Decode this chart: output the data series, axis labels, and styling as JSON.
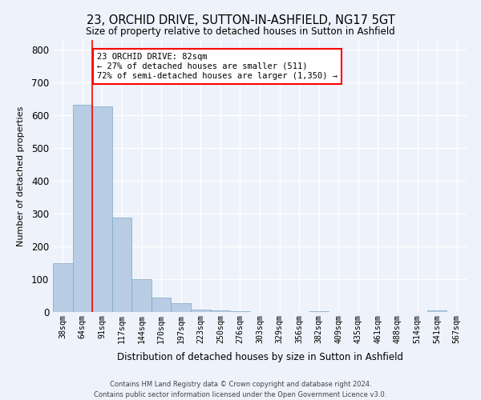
{
  "title": "23, ORCHID DRIVE, SUTTON-IN-ASHFIELD, NG17 5GT",
  "subtitle": "Size of property relative to detached houses in Sutton in Ashfield",
  "xlabel": "Distribution of detached houses by size in Sutton in Ashfield",
  "ylabel": "Number of detached properties",
  "bar_color": "#b8cce4",
  "bar_edge_color": "#7da7c4",
  "background_color": "#eef2fa",
  "grid_color": "#ffffff",
  "bin_labels": [
    "38sqm",
    "64sqm",
    "91sqm",
    "117sqm",
    "144sqm",
    "170sqm",
    "197sqm",
    "223sqm",
    "250sqm",
    "276sqm",
    "303sqm",
    "329sqm",
    "356sqm",
    "382sqm",
    "409sqm",
    "435sqm",
    "461sqm",
    "488sqm",
    "514sqm",
    "541sqm",
    "567sqm"
  ],
  "bar_heights": [
    148,
    632,
    628,
    287,
    101,
    44,
    28,
    8,
    5,
    3,
    0,
    0,
    0,
    2,
    0,
    0,
    0,
    0,
    0,
    5,
    0
  ],
  "ylim": [
    0,
    830
  ],
  "yticks": [
    0,
    100,
    200,
    300,
    400,
    500,
    600,
    700,
    800
  ],
  "property_label": "23 ORCHID DRIVE: 82sqm",
  "annotation_line1": "← 27% of detached houses are smaller (511)",
  "annotation_line2": "72% of semi-detached houses are larger (1,350) →",
  "vline_bin": 2,
  "footer_line1": "Contains HM Land Registry data © Crown copyright and database right 2024.",
  "footer_line2": "Contains public sector information licensed under the Open Government Licence v3.0."
}
